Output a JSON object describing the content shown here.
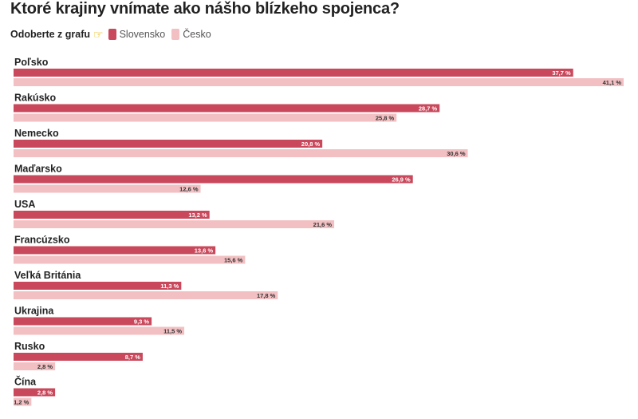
{
  "title": "Ktoré krajiny vnímate ako nášho blízkeho spojenca?",
  "legend": {
    "label": "Odoberte z grafu",
    "icon": "pointing-hand-icon",
    "items": [
      {
        "name": "Slovensko",
        "color": "#c9485b"
      },
      {
        "name": "Česko",
        "color": "#f2c0c3"
      }
    ]
  },
  "chart_data": {
    "type": "bar",
    "orientation": "horizontal",
    "categories": [
      "Poľsko",
      "Rakúsko",
      "Nemecko",
      "Maďarsko",
      "USA",
      "Francúzsko",
      "Veľká Británia",
      "Ukrajina",
      "Rusko",
      "Čína"
    ],
    "series": [
      {
        "name": "Slovensko",
        "color": "#c9485b",
        "values": [
          37.7,
          28.7,
          20.8,
          26.9,
          13.2,
          13.6,
          11.3,
          9.3,
          8.7,
          2.8
        ],
        "labels": [
          "37,7 %",
          "28,7 %",
          "20,8 %",
          "26,9 %",
          "13,2 %",
          "13,6 %",
          "11,3 %",
          "9,3 %",
          "8,7 %",
          "2,8 %"
        ]
      },
      {
        "name": "Česko",
        "color": "#f2c0c3",
        "values": [
          41.1,
          25.8,
          30.6,
          12.6,
          21.6,
          15.6,
          17.8,
          11.5,
          2.8,
          1.2
        ],
        "labels": [
          "41,1 %",
          "25,8 %",
          "30,6 %",
          "12,6 %",
          "21,6 %",
          "15,6 %",
          "17,8 %",
          "11,5 %",
          "2,8 %",
          "1,2 %"
        ]
      }
    ],
    "xlim": [
      0,
      41.1
    ],
    "grid": false,
    "legend_position": "top-left"
  }
}
